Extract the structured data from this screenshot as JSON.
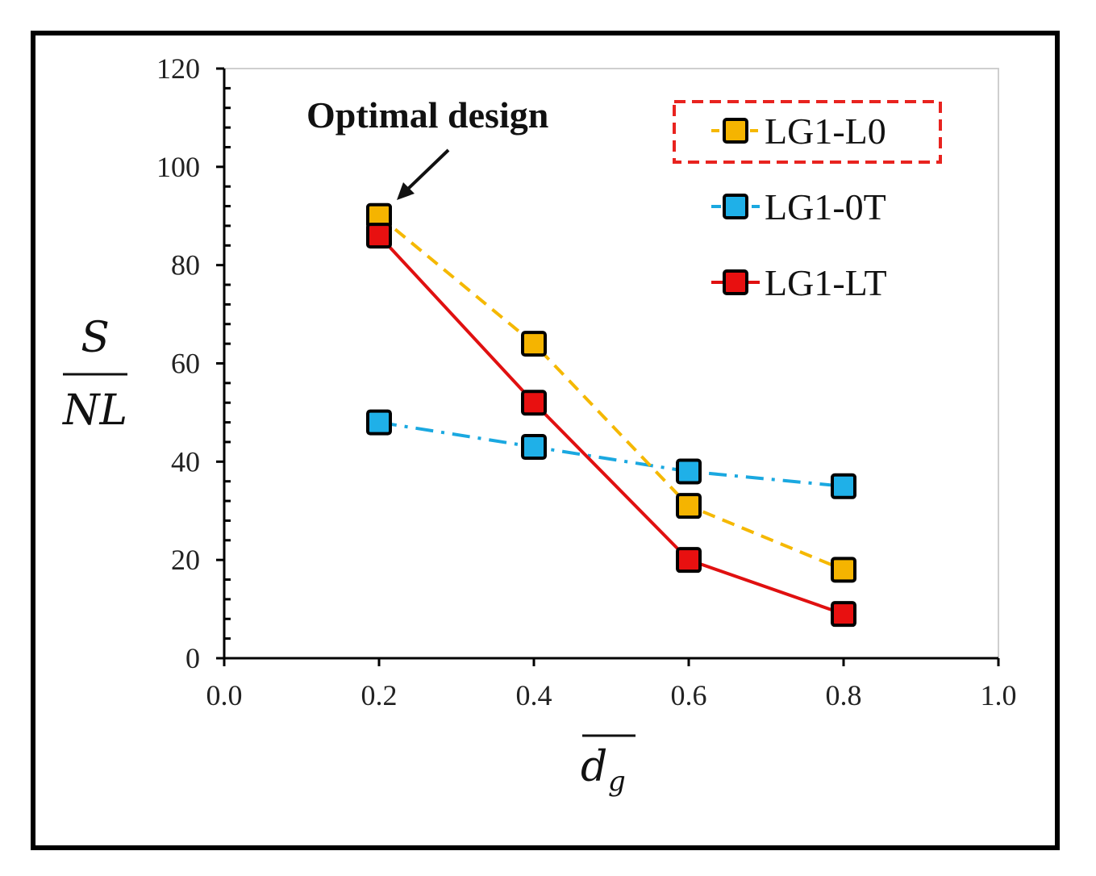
{
  "chart_data": {
    "type": "line",
    "title": "",
    "xlabel": {
      "main": "d",
      "subscript": "g"
    },
    "ylabel": {
      "numerator": "S",
      "denominator": "NL"
    },
    "xlim": [
      0.0,
      1.0
    ],
    "ylim": [
      0,
      120
    ],
    "x_ticks": [
      "0.0",
      "0.2",
      "0.4",
      "0.6",
      "0.8",
      "1.0"
    ],
    "y_ticks": [
      "0",
      "20",
      "40",
      "60",
      "80",
      "100",
      "120"
    ],
    "grid": false,
    "legend_position": "top-right",
    "annotation": {
      "text": "Optimal design",
      "points_to": {
        "x": 0.2,
        "y": 90
      }
    },
    "series": [
      {
        "name": "LG1-L0",
        "x": [
          0.2,
          0.4,
          0.6,
          0.8
        ],
        "values": [
          90,
          64,
          31,
          18
        ],
        "line_color": "#f5b800",
        "marker_color": "#f5b400",
        "line_style": "dashed",
        "highlighted": true
      },
      {
        "name": "LG1-0T",
        "x": [
          0.2,
          0.4,
          0.6,
          0.8
        ],
        "values": [
          48,
          43,
          38,
          35
        ],
        "line_color": "#1aa8e0",
        "marker_color": "#1fb0e8",
        "line_style": "dashdot",
        "highlighted": false
      },
      {
        "name": "LG1-LT",
        "x": [
          0.2,
          0.4,
          0.6,
          0.8
        ],
        "values": [
          86,
          52,
          20,
          9
        ],
        "line_color": "#e01010",
        "marker_color": "#e81010",
        "line_style": "solid",
        "highlighted": false
      }
    ]
  }
}
